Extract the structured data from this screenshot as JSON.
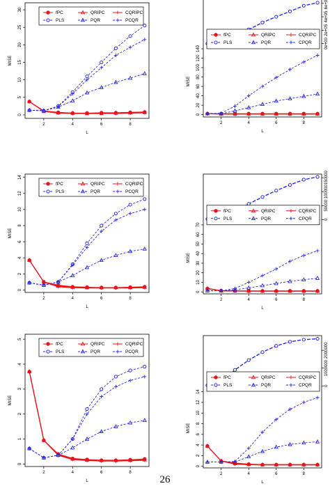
{
  "page_number": "26",
  "legend": {
    "entries": [
      "fPC",
      "QRIPC",
      "CQRIPC",
      "PLS",
      "PQR",
      "PCQR"
    ],
    "entries_right": [
      "fPC",
      "QRIPC",
      "CQRIPC",
      "PLS",
      "PQR",
      "CPQR"
    ]
  },
  "colors": {
    "red": "#e8141c",
    "blue": "#2a2ae8"
  },
  "chart_data": [
    {
      "type": "line",
      "position": "row1-left",
      "xlabel": "L",
      "ylabel": "MISE",
      "x": [
        1,
        2,
        3,
        4,
        5,
        6,
        7,
        8,
        9
      ],
      "xlim": [
        0.7,
        9.3
      ],
      "ylim": [
        -1,
        32
      ],
      "xticks": [
        "2",
        "4",
        "6",
        "8"
      ],
      "yticks": [
        "0",
        "5",
        "10",
        "15",
        "20",
        "25",
        "30"
      ],
      "series": [
        {
          "name": "fPC",
          "color": "red",
          "marker": "circle-filled",
          "dash": "solid",
          "values": [
            3.8,
            1.1,
            0.7,
            0.5,
            0.5,
            0.6,
            0.6,
            0.7,
            0.8
          ]
        },
        {
          "name": "QRIPC",
          "color": "red",
          "marker": "triangle",
          "dash": "solid",
          "values": [
            3.8,
            1.0,
            0.6,
            0.5,
            0.4,
            0.4,
            0.5,
            0.6,
            0.7
          ]
        },
        {
          "name": "CQRIPC",
          "color": "red",
          "marker": "plus",
          "dash": "solid",
          "values": [
            3.8,
            1.0,
            0.5,
            0.4,
            0.4,
            0.4,
            0.4,
            0.5,
            0.6
          ]
        },
        {
          "name": "PLS",
          "color": "blue",
          "marker": "circle-open",
          "dash": "dashed",
          "values": [
            1.3,
            1.2,
            2.5,
            6.5,
            11,
            15,
            19,
            22.5,
            25.5
          ]
        },
        {
          "name": "PQR",
          "color": "blue",
          "marker": "triangle",
          "dash": "dashed",
          "values": [
            1.3,
            1.2,
            2.2,
            4,
            6.3,
            7.8,
            9.3,
            10.5,
            11.8
          ]
        },
        {
          "name": "PCQR",
          "color": "blue",
          "marker": "plus",
          "dash": "dashed",
          "values": [
            1.3,
            1.2,
            2.4,
            6,
            10,
            13.5,
            17,
            19.3,
            21.5
          ]
        }
      ]
    },
    {
      "type": "line",
      "position": "row1-right",
      "xlabel": "L",
      "ylabel": "MISE",
      "x": [
        1,
        2,
        3,
        4,
        5,
        6,
        7,
        8,
        9
      ],
      "xlim": [
        0.7,
        9.3
      ],
      "ylim": [
        -5,
        160
      ],
      "xticks": [
        "2",
        "4",
        "6",
        "8"
      ],
      "yticks": [
        "0",
        "20",
        "40",
        "60",
        "80",
        "100",
        "120",
        "140"
      ],
      "right_axis": {
        "ylim": [
          0,
          650000.0
        ],
        "yticks": [
          "0e+00",
          "2e+05",
          "4e+05",
          "6e+05"
        ]
      },
      "series": [
        {
          "name": "fPC",
          "color": "red",
          "marker": "circle-filled",
          "dash": "solid",
          "values": [
            2,
            2,
            2,
            2,
            2,
            2,
            2,
            2,
            2
          ]
        },
        {
          "name": "QRIPC",
          "color": "red",
          "marker": "triangle",
          "dash": "solid",
          "values": [
            2,
            1.5,
            1.5,
            1.5,
            1.5,
            1.5,
            1.5,
            1.5,
            1.5
          ]
        },
        {
          "name": "CQRIPC",
          "color": "red",
          "marker": "plus",
          "dash": "solid",
          "values": [
            2,
            1,
            1,
            1,
            1,
            1,
            1,
            1,
            1
          ]
        },
        {
          "name": "PLS",
          "color": "blue",
          "marker": "circle-open",
          "dash": "dashed",
          "values": [
            0,
            22000.0,
            105000.0,
            210000.0,
            315000.0,
            400000.0,
            480000.0,
            565000.0,
            610000.0
          ],
          "axis": "right"
        },
        {
          "name": "PQR",
          "color": "blue",
          "marker": "triangle",
          "dash": "dashed",
          "values": [
            2,
            2,
            8,
            15,
            22,
            29,
            34,
            39,
            44
          ]
        },
        {
          "name": "CPQR",
          "color": "blue",
          "marker": "plus",
          "dash": "dashed",
          "values": [
            2,
            3,
            18,
            40,
            60,
            79,
            96,
            112,
            126
          ]
        }
      ]
    },
    {
      "type": "line",
      "position": "row2-left",
      "xlabel": "L",
      "ylabel": "MISE",
      "x": [
        1,
        2,
        3,
        4,
        5,
        6,
        7,
        8,
        9
      ],
      "xlim": [
        0.7,
        9.3
      ],
      "ylim": [
        -0.3,
        14.4
      ],
      "xticks": [
        "2",
        "4",
        "6",
        "8"
      ],
      "yticks": [
        "0",
        "2",
        "4",
        "6",
        "8",
        "10",
        "12",
        "14"
      ],
      "series": [
        {
          "name": "fPC",
          "color": "red",
          "marker": "circle-filled",
          "dash": "solid",
          "values": [
            3.7,
            1.0,
            0.6,
            0.4,
            0.35,
            0.3,
            0.3,
            0.35,
            0.4
          ]
        },
        {
          "name": "QRIPC",
          "color": "red",
          "marker": "triangle",
          "dash": "solid",
          "values": [
            3.7,
            1.0,
            0.5,
            0.35,
            0.3,
            0.3,
            0.3,
            0.3,
            0.35
          ]
        },
        {
          "name": "CQRIPC",
          "color": "red",
          "marker": "plus",
          "dash": "solid",
          "values": [
            3.7,
            1.0,
            0.4,
            0.3,
            0.25,
            0.25,
            0.25,
            0.25,
            0.3
          ]
        },
        {
          "name": "PLS",
          "color": "blue",
          "marker": "circle-open",
          "dash": "dashed",
          "values": [
            0.9,
            0.6,
            1.0,
            3.2,
            5.8,
            8.0,
            9.5,
            10.6,
            11.3
          ]
        },
        {
          "name": "PQR",
          "color": "blue",
          "marker": "triangle",
          "dash": "dashed",
          "values": [
            0.9,
            0.6,
            1.0,
            1.8,
            2.8,
            3.7,
            4.3,
            4.8,
            5.1
          ]
        },
        {
          "name": "PCQR",
          "color": "blue",
          "marker": "plus",
          "dash": "dashed",
          "values": [
            0.9,
            0.6,
            1.0,
            3.1,
            5.3,
            7.3,
            8.7,
            9.5,
            10.0
          ]
        }
      ]
    },
    {
      "type": "line",
      "position": "row2-right",
      "xlabel": "L",
      "ylabel": "MISE",
      "x": [
        1,
        2,
        3,
        4,
        5,
        6,
        7,
        8,
        9
      ],
      "xlim": [
        0.7,
        9.3
      ],
      "ylim": [
        -2,
        75
      ],
      "xticks": [
        "2",
        "4",
        "6",
        "8"
      ],
      "yticks": [
        "0",
        "10",
        "20",
        "30",
        "40",
        "50",
        "60",
        "70"
      ],
      "right_axis": {
        "ylim": [
          0,
          158000.0
        ],
        "yticks": [
          "0",
          "50000",
          "100000",
          "150000"
        ]
      },
      "series": [
        {
          "name": "fPC",
          "color": "red",
          "marker": "circle-filled",
          "dash": "solid",
          "values": [
            3.5,
            1.3,
            1.1,
            1.0,
            1.0,
            1.0,
            1.0,
            1.0,
            1.0
          ]
        },
        {
          "name": "QRIPC",
          "color": "red",
          "marker": "triangle",
          "dash": "solid",
          "values": [
            3.5,
            1.2,
            1.0,
            0.9,
            0.9,
            0.9,
            0.9,
            0.9,
            0.9
          ]
        },
        {
          "name": "CQRIPC",
          "color": "red",
          "marker": "plus",
          "dash": "solid",
          "values": [
            3.5,
            1.0,
            0.9,
            0.8,
            0.8,
            0.8,
            0.8,
            0.8,
            0.8
          ]
        },
        {
          "name": "PLS",
          "color": "blue",
          "marker": "circle-open",
          "dash": "dashed",
          "values": [
            2000,
            9000,
            30000,
            56000,
            81000,
            104000,
            124000,
            143000,
            153000
          ],
          "axis": "right"
        },
        {
          "name": "PQR",
          "color": "blue",
          "marker": "triangle",
          "dash": "dashed",
          "values": [
            1.2,
            1.1,
            2.2,
            4.2,
            6.6,
            8.8,
            11,
            12.8,
            14.3
          ]
        },
        {
          "name": "CPQR",
          "color": "blue",
          "marker": "plus",
          "dash": "dashed",
          "values": [
            1.2,
            1.1,
            3.5,
            10,
            17,
            24,
            32,
            38,
            43
          ]
        }
      ]
    },
    {
      "type": "line",
      "position": "row3-left",
      "xlabel": "L",
      "ylabel": "MISE",
      "x": [
        1,
        2,
        3,
        4,
        5,
        6,
        7,
        8,
        9
      ],
      "xlim": [
        0.7,
        9.3
      ],
      "ylim": [
        -0.1,
        5.2
      ],
      "xticks": [
        "2",
        "4",
        "6",
        "8"
      ],
      "yticks": [
        "0",
        "1",
        "2",
        "3",
        "4",
        "5"
      ],
      "series": [
        {
          "name": "fPC",
          "color": "red",
          "marker": "circle-filled",
          "dash": "solid",
          "values": [
            3.7,
            0.95,
            0.4,
            0.22,
            0.18,
            0.15,
            0.15,
            0.17,
            0.2
          ]
        },
        {
          "name": "QRIPC",
          "color": "red",
          "marker": "triangle",
          "dash": "solid",
          "values": [
            3.7,
            0.95,
            0.38,
            0.2,
            0.16,
            0.14,
            0.14,
            0.15,
            0.17
          ]
        },
        {
          "name": "CQRIPC",
          "color": "red",
          "marker": "plus",
          "dash": "solid",
          "values": [
            3.7,
            0.95,
            0.35,
            0.18,
            0.14,
            0.12,
            0.12,
            0.13,
            0.15
          ]
        },
        {
          "name": "PLS",
          "color": "blue",
          "marker": "circle-open",
          "dash": "dashed",
          "values": [
            0.62,
            0.25,
            0.35,
            1.0,
            2.2,
            3.0,
            3.5,
            3.75,
            3.9
          ]
        },
        {
          "name": "PQR",
          "color": "blue",
          "marker": "triangle",
          "dash": "dashed",
          "values": [
            0.62,
            0.25,
            0.35,
            0.65,
            1.0,
            1.3,
            1.5,
            1.65,
            1.75
          ]
        },
        {
          "name": "PCQR",
          "color": "blue",
          "marker": "plus",
          "dash": "dashed",
          "values": [
            0.62,
            0.25,
            0.35,
            1.0,
            2.0,
            2.7,
            3.1,
            3.35,
            3.5
          ]
        }
      ]
    },
    {
      "type": "line",
      "position": "row3-right",
      "xlabel": "L",
      "ylabel": "MISE",
      "x": [
        1,
        2,
        3,
        4,
        5,
        6,
        7,
        8,
        9
      ],
      "xlim": [
        0.7,
        9.3
      ],
      "ylim": [
        -0.3,
        29
      ],
      "xticks": [
        "2",
        "4",
        "6",
        "8"
      ],
      "yticks": [
        "0",
        "2",
        "4",
        "6",
        "8",
        "10",
        "12",
        "14"
      ],
      "right_axis": {
        "ylim": [
          0,
          2750000.0
        ],
        "yticks": [
          "0",
          "1000000",
          "2000000"
        ]
      },
      "series": [
        {
          "name": "fPC",
          "color": "red",
          "marker": "circle-filled",
          "dash": "solid",
          "values": [
            3.8,
            1.0,
            0.6,
            0.4,
            0.3,
            0.3,
            0.3,
            0.3,
            0.3
          ]
        },
        {
          "name": "QRIPC",
          "color": "red",
          "marker": "triangle",
          "dash": "solid",
          "values": [
            3.8,
            1.0,
            0.5,
            0.35,
            0.3,
            0.3,
            0.3,
            0.3,
            0.3
          ]
        },
        {
          "name": "CQRIPC",
          "color": "red",
          "marker": "plus",
          "dash": "solid",
          "values": [
            3.8,
            1.0,
            0.4,
            0.3,
            0.25,
            0.25,
            0.25,
            0.25,
            0.25
          ]
        },
        {
          "name": "PLS",
          "color": "blue",
          "marker": "circle-open",
          "dash": "dashed",
          "values": [
            30000,
            200000,
            900000,
            1450000,
            1900000,
            2250000,
            2480000,
            2600000,
            2650000
          ],
          "axis": "right"
        },
        {
          "name": "PQR",
          "color": "blue",
          "marker": "triangle",
          "dash": "dashed",
          "values": [
            0.8,
            0.8,
            0.8,
            1.8,
            2.8,
            3.6,
            4.1,
            4.4,
            4.6
          ]
        },
        {
          "name": "CPQR",
          "color": "blue",
          "marker": "plus",
          "dash": "dashed",
          "values": [
            0.8,
            0.8,
            0.9,
            3.4,
            6.4,
            8.8,
            10.7,
            12.0,
            12.9
          ]
        }
      ]
    }
  ]
}
